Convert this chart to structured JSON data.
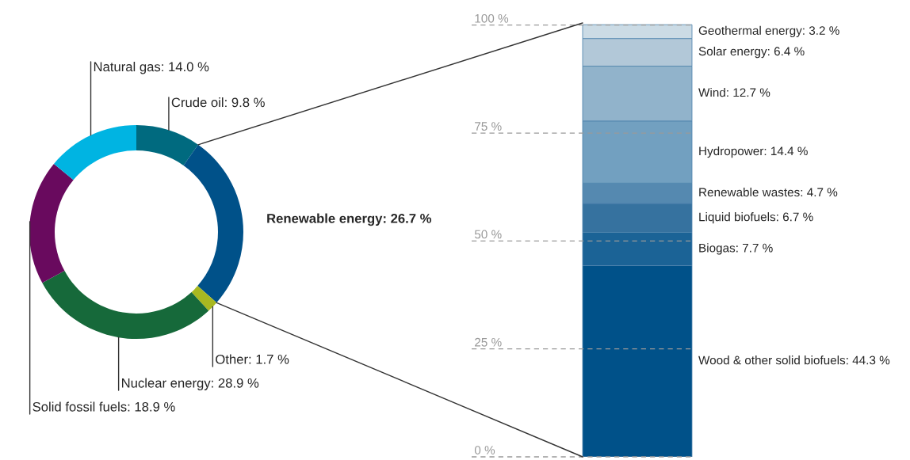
{
  "chart_data": [
    {
      "type": "donut",
      "categories": [
        "Crude oil",
        "Renewable energy",
        "Other",
        "Nuclear energy",
        "Solid fossil fuels",
        "Natural gas"
      ],
      "values": [
        9.8,
        26.7,
        1.7,
        28.9,
        18.9,
        14.0
      ],
      "value_labels": [
        "9.8 %",
        "26.7 %",
        "1.7 %",
        "28.9 %",
        "18.9 %",
        "14.0 %"
      ],
      "colors": [
        "#006a7f",
        "#005189",
        "#a8b820",
        "#16693a",
        "#690a5e",
        "#00b4e2"
      ]
    },
    {
      "type": "bar",
      "stacked": true,
      "categories": [
        null
      ],
      "ylim": [
        0,
        100.5
      ],
      "yticks": [
        {
          "value": 0,
          "label": "0 %"
        },
        {
          "value": 25,
          "label": "25 %"
        },
        {
          "value": 50,
          "label": "50 %"
        },
        {
          "value": 75,
          "label": "75 %"
        },
        {
          "value": 100,
          "label": "100 %"
        }
      ],
      "grid": "y",
      "tick_labels": "y",
      "series": [
        {
          "name": "Wood & other solid biofuels:",
          "color": "#005189",
          "values": [
            44.3
          ],
          "value_labels": [
            "44.3 %"
          ]
        },
        {
          "name": "Biogas:",
          "color": "#1b6396",
          "values": [
            7.7
          ],
          "value_labels": [
            "7.7 %"
          ]
        },
        {
          "name": "Liquid biofuels:",
          "color": "#36729f",
          "values": [
            6.7
          ],
          "value_labels": [
            "6.7 %"
          ]
        },
        {
          "name": "Renewable wastes:",
          "color": "#5589b0",
          "values": [
            4.7
          ],
          "value_labels": [
            "4.7 %"
          ]
        },
        {
          "name": "Hydropower:",
          "color": "#72a0c0",
          "values": [
            14.4
          ],
          "value_labels": [
            "14.4 %"
          ]
        },
        {
          "name": "Wind:",
          "color": "#91b3cb",
          "values": [
            12.7
          ],
          "value_labels": [
            "12.7 %"
          ]
        },
        {
          "name": "Solar energy:",
          "color": "#b2c8d8",
          "values": [
            6.4
          ],
          "value_labels": [
            "6.4 %"
          ]
        },
        {
          "name": "Geothermal energy:",
          "color": "#cbdbe5",
          "values": [
            3.2
          ],
          "value_labels": [
            "3.2 %"
          ]
        }
      ]
    }
  ]
}
